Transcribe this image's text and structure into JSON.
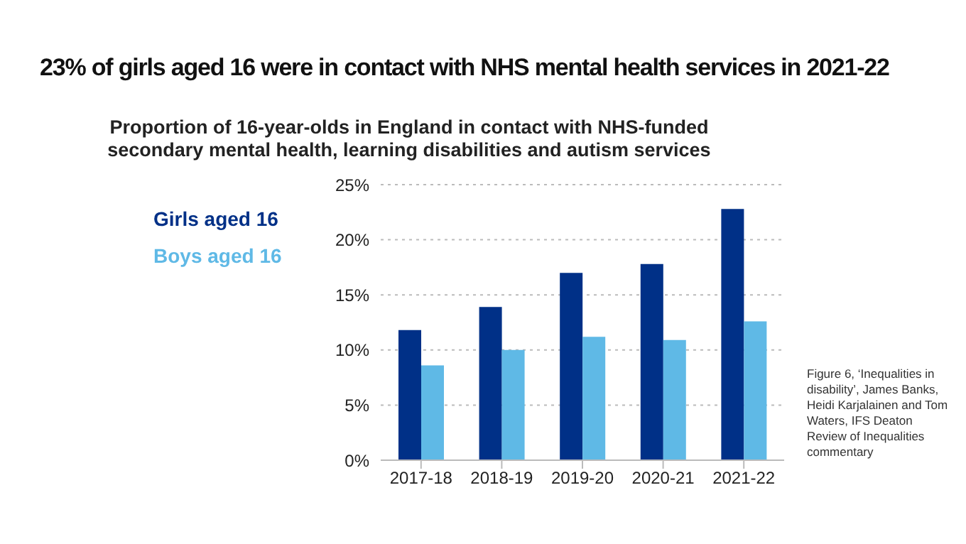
{
  "chart_data": {
    "type": "bar",
    "title": "23% of girls aged 16 were in contact with NHS mental health services in 2021-22",
    "subtitle": "Proportion of 16-year-olds in England in contact with NHS-funded secondary mental health, learning disabilities and autism services",
    "categories": [
      "2017-18",
      "2018-19",
      "2019-20",
      "2020-21",
      "2021-22"
    ],
    "series": [
      {
        "name": "Girls aged 16",
        "color": "#003087",
        "values": [
          11.8,
          13.9,
          17.0,
          17.8,
          22.8
        ]
      },
      {
        "name": "Boys aged 16",
        "color": "#5fb9e6",
        "values": [
          8.6,
          10.0,
          11.2,
          10.9,
          12.6
        ]
      }
    ],
    "ylim": [
      0,
      25
    ],
    "yticks": [
      {
        "value": 0,
        "label": "0%"
      },
      {
        "value": 5,
        "label": "5%"
      },
      {
        "value": 10,
        "label": "10%"
      },
      {
        "value": 15,
        "label": "15%"
      },
      {
        "value": 20,
        "label": "20%"
      },
      {
        "value": 25,
        "label": "25%"
      }
    ],
    "grid": "y",
    "legend": "top left",
    "annotations": [
      "Figure 6, ‘Inequalities in disability’, James Banks, Heidi Karjalainen and Tom Waters, IFS Deaton Review of Inequalities commentary"
    ]
  }
}
